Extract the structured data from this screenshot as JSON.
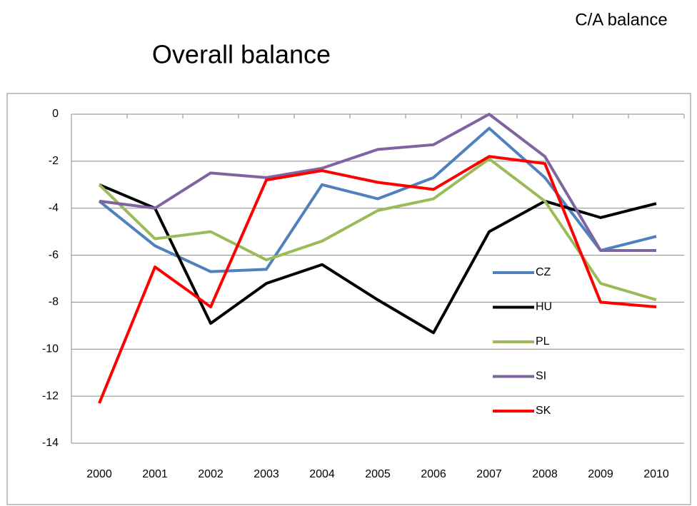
{
  "chart_data": {
    "type": "line",
    "corner_label": "C/A balance",
    "title": "Overall balance",
    "categories": [
      "2000",
      "2001",
      "2002",
      "2003",
      "2004",
      "2005",
      "2006",
      "2007",
      "2008",
      "2009",
      "2010"
    ],
    "series": [
      {
        "name": "CZ",
        "color": "#4f81bd",
        "values": [
          -3.7,
          -5.6,
          -6.7,
          -6.6,
          -3.0,
          -3.6,
          -2.7,
          -0.6,
          -2.7,
          -5.8,
          -5.2
        ]
      },
      {
        "name": "HU",
        "color": "#000000",
        "values": [
          -3.0,
          -4.0,
          -8.9,
          -7.2,
          -6.4,
          -7.9,
          -9.3,
          -5.0,
          -3.7,
          -4.4,
          -3.8
        ]
      },
      {
        "name": "PL",
        "color": "#9bbb59",
        "values": [
          -3.0,
          -5.3,
          -5.0,
          -6.2,
          -5.4,
          -4.1,
          -3.6,
          -1.9,
          -3.7,
          -7.2,
          -7.9
        ]
      },
      {
        "name": "SI",
        "color": "#8064a2",
        "values": [
          -3.7,
          -4.0,
          -2.5,
          -2.7,
          -2.3,
          -1.5,
          -1.3,
          0.0,
          -1.8,
          -5.8,
          -5.8
        ]
      },
      {
        "name": "SK",
        "color": "#ff0000",
        "values": [
          -12.3,
          -6.5,
          -8.2,
          -2.8,
          -2.4,
          -2.9,
          -3.2,
          -1.8,
          -2.1,
          -8.0,
          -8.2
        ]
      }
    ],
    "ylim": [
      -14,
      0
    ],
    "yticks": [
      0,
      -2,
      -4,
      -6,
      -8,
      -10,
      -12,
      -14
    ],
    "grid": true,
    "legend": "right"
  }
}
